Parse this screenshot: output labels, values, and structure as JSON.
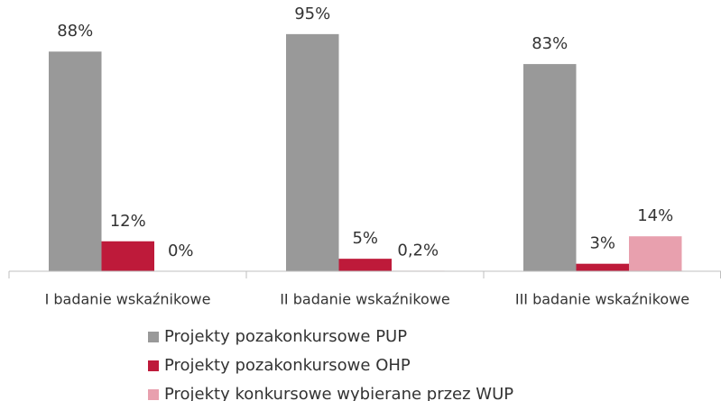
{
  "chart_data": {
    "type": "bar",
    "categories": [
      "I badanie wskaźnikowe",
      "II badanie wskaźnikowe",
      "III badanie wskaźnikowe"
    ],
    "series": [
      {
        "name": "Projekty pozakonkursowe PUP",
        "color": "#999999",
        "values": [
          88,
          95,
          83
        ],
        "value_labels": [
          "88%",
          "95%",
          "83%"
        ]
      },
      {
        "name": "Projekty pozakonkursowe OHP",
        "color": "#be1a3a",
        "values": [
          12,
          5,
          3
        ],
        "value_labels": [
          "12%",
          "5%",
          "3%"
        ]
      },
      {
        "name": "Projekty konkursowe wybierane przez WUP",
        "color": "#e8a0ae",
        "values": [
          0,
          0.2,
          14
        ],
        "value_labels": [
          "0%",
          "0,2%",
          "14%"
        ]
      }
    ],
    "ylim": [
      0,
      100
    ],
    "legend": "bottom"
  }
}
